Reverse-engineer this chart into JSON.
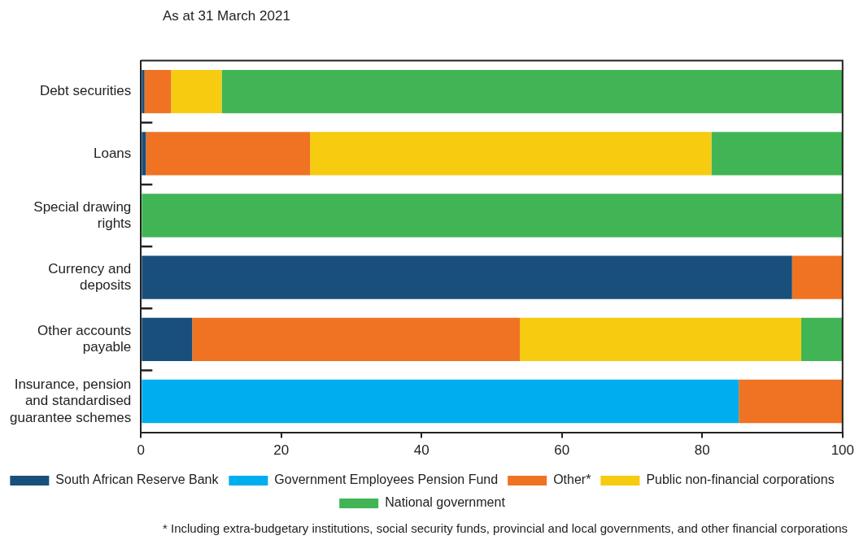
{
  "chart_data": {
    "type": "bar",
    "orientation": "horizontal",
    "stacked": true,
    "title": "As at 31 March 2021",
    "categories": [
      "Debt securities",
      "Loans",
      "Special drawing rights",
      "Currency and deposits",
      "Other accounts payable",
      "Insurance, pension and standardised guarantee schemes"
    ],
    "series": [
      {
        "name": "South African Reserve Bank",
        "color": "#194f7b",
        "values": [
          0.5,
          0.7,
          0,
          92.8,
          7.3,
          0
        ]
      },
      {
        "name": "Government Employees Pension Fund",
        "color": "#00aeef",
        "values": [
          0,
          0,
          0,
          0,
          0,
          85.2
        ]
      },
      {
        "name": "Other*",
        "color": "#ef7322",
        "values": [
          3.8,
          23.4,
          0,
          7.2,
          46.7,
          14.8
        ]
      },
      {
        "name": "Public non-financial corporations",
        "color": "#f6cb10",
        "values": [
          7.2,
          57.2,
          0,
          0,
          40.1,
          0
        ]
      },
      {
        "name": "National government",
        "color": "#41b555",
        "values": [
          88.5,
          18.7,
          100,
          0,
          5.9,
          0
        ]
      }
    ],
    "xlim": [
      0,
      100
    ],
    "xticks": [
      0,
      20,
      40,
      60,
      80,
      100
    ],
    "grid": false,
    "legend": "bottom",
    "annotations": [
      "* Including extra-budgetary institutions, social security funds, provincial and local governments, and other financial corporations"
    ]
  }
}
